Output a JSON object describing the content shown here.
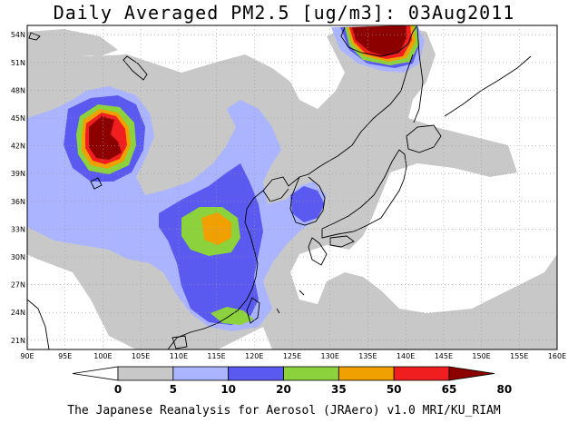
{
  "title": "Daily Averaged PM2.5 [ug/m3]: 03Aug2011",
  "footer": "The Japanese Reanalysis for Aerosol (JRAero) v1.0 MRI/KU_RIAM",
  "map": {
    "lon_range": [
      90,
      160
    ],
    "lat_range": [
      20,
      55
    ],
    "lon_ticks": [
      "90E",
      "95E",
      "100E",
      "105E",
      "110E",
      "115E",
      "120E",
      "125E",
      "130E",
      "135E",
      "140E",
      "145E",
      "150E",
      "155E",
      "160E"
    ],
    "lat_ticks": [
      "21N",
      "24N",
      "27N",
      "30N",
      "33N",
      "36N",
      "39N",
      "42N",
      "45N",
      "48N",
      "51N",
      "54N"
    ],
    "gridlines": true
  },
  "colorbar": {
    "levels": [
      "0",
      "5",
      "10",
      "20",
      "35",
      "50",
      "65",
      "80"
    ],
    "colors": [
      "#ffffff",
      "#c8c8c8",
      "#aab4ff",
      "#5a5af0",
      "#8cd23c",
      "#f0a000",
      "#f01e1e",
      "#8c0000"
    ]
  },
  "colors": {
    "lt5": "#ffffff",
    "c5_10": "#c8c8c8",
    "c10_20": "#aab4ff",
    "c20_35": "#5a5af0",
    "c35_50": "#8cd23c",
    "c50_65": "#f0a000",
    "c65_80": "#f01e1e",
    "gt80": "#8c0000",
    "coastline": "#000000",
    "grid": "#999999"
  }
}
